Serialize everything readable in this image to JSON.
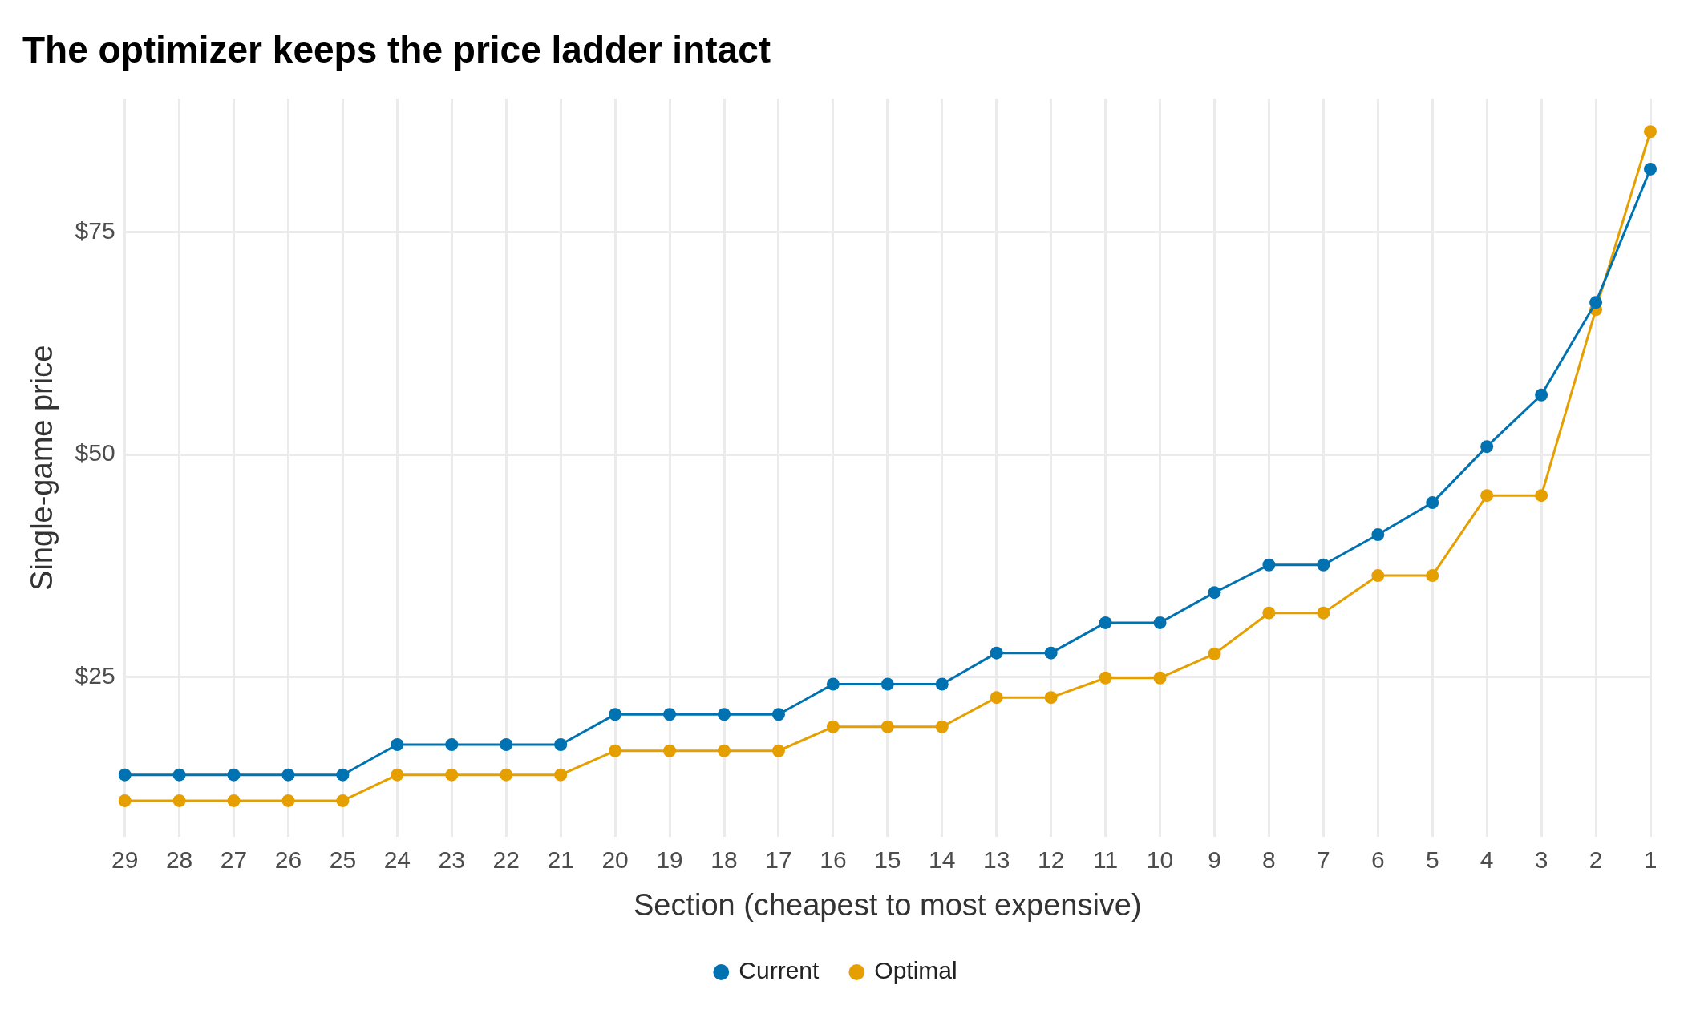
{
  "chart_data": {
    "type": "line",
    "title": "The optimizer keeps the price ladder intact",
    "xlabel": "Section (cheapest to most expensive)",
    "ylabel": "Single-game price",
    "categories": [
      "29",
      "28",
      "27",
      "26",
      "25",
      "24",
      "23",
      "22",
      "21",
      "20",
      "19",
      "18",
      "17",
      "16",
      "15",
      "14",
      "13",
      "12",
      "11",
      "10",
      "9",
      "8",
      "7",
      "6",
      "5",
      "4",
      "3",
      "2",
      "1"
    ],
    "series": [
      {
        "name": "Current",
        "color": "#0072b2",
        "values": [
          14.0,
          14.0,
          14.0,
          14.0,
          14.0,
          17.4,
          17.4,
          17.4,
          17.4,
          20.8,
          20.8,
          20.8,
          20.8,
          24.2,
          24.2,
          24.2,
          27.7,
          27.7,
          31.1,
          31.1,
          34.5,
          37.6,
          37.6,
          41.0,
          44.6,
          50.9,
          56.7,
          67.1,
          82.1
        ]
      },
      {
        "name": "Optimal",
        "color": "#e69f00",
        "values": [
          11.1,
          11.1,
          11.1,
          11.1,
          11.1,
          14.0,
          14.0,
          14.0,
          14.0,
          16.7,
          16.7,
          16.7,
          16.7,
          19.4,
          19.4,
          19.4,
          22.7,
          22.7,
          24.9,
          24.9,
          27.6,
          32.2,
          32.2,
          36.4,
          36.4,
          45.4,
          45.4,
          66.3,
          86.3
        ]
      }
    ],
    "ylim": [
      7,
      90
    ],
    "yticks": [
      {
        "value": 25,
        "label": "$25"
      },
      {
        "value": 50,
        "label": "$50"
      },
      {
        "value": 75,
        "label": "$75"
      }
    ],
    "grid": true,
    "legend": "bottom",
    "marker": "circle",
    "line_style": "solid"
  }
}
